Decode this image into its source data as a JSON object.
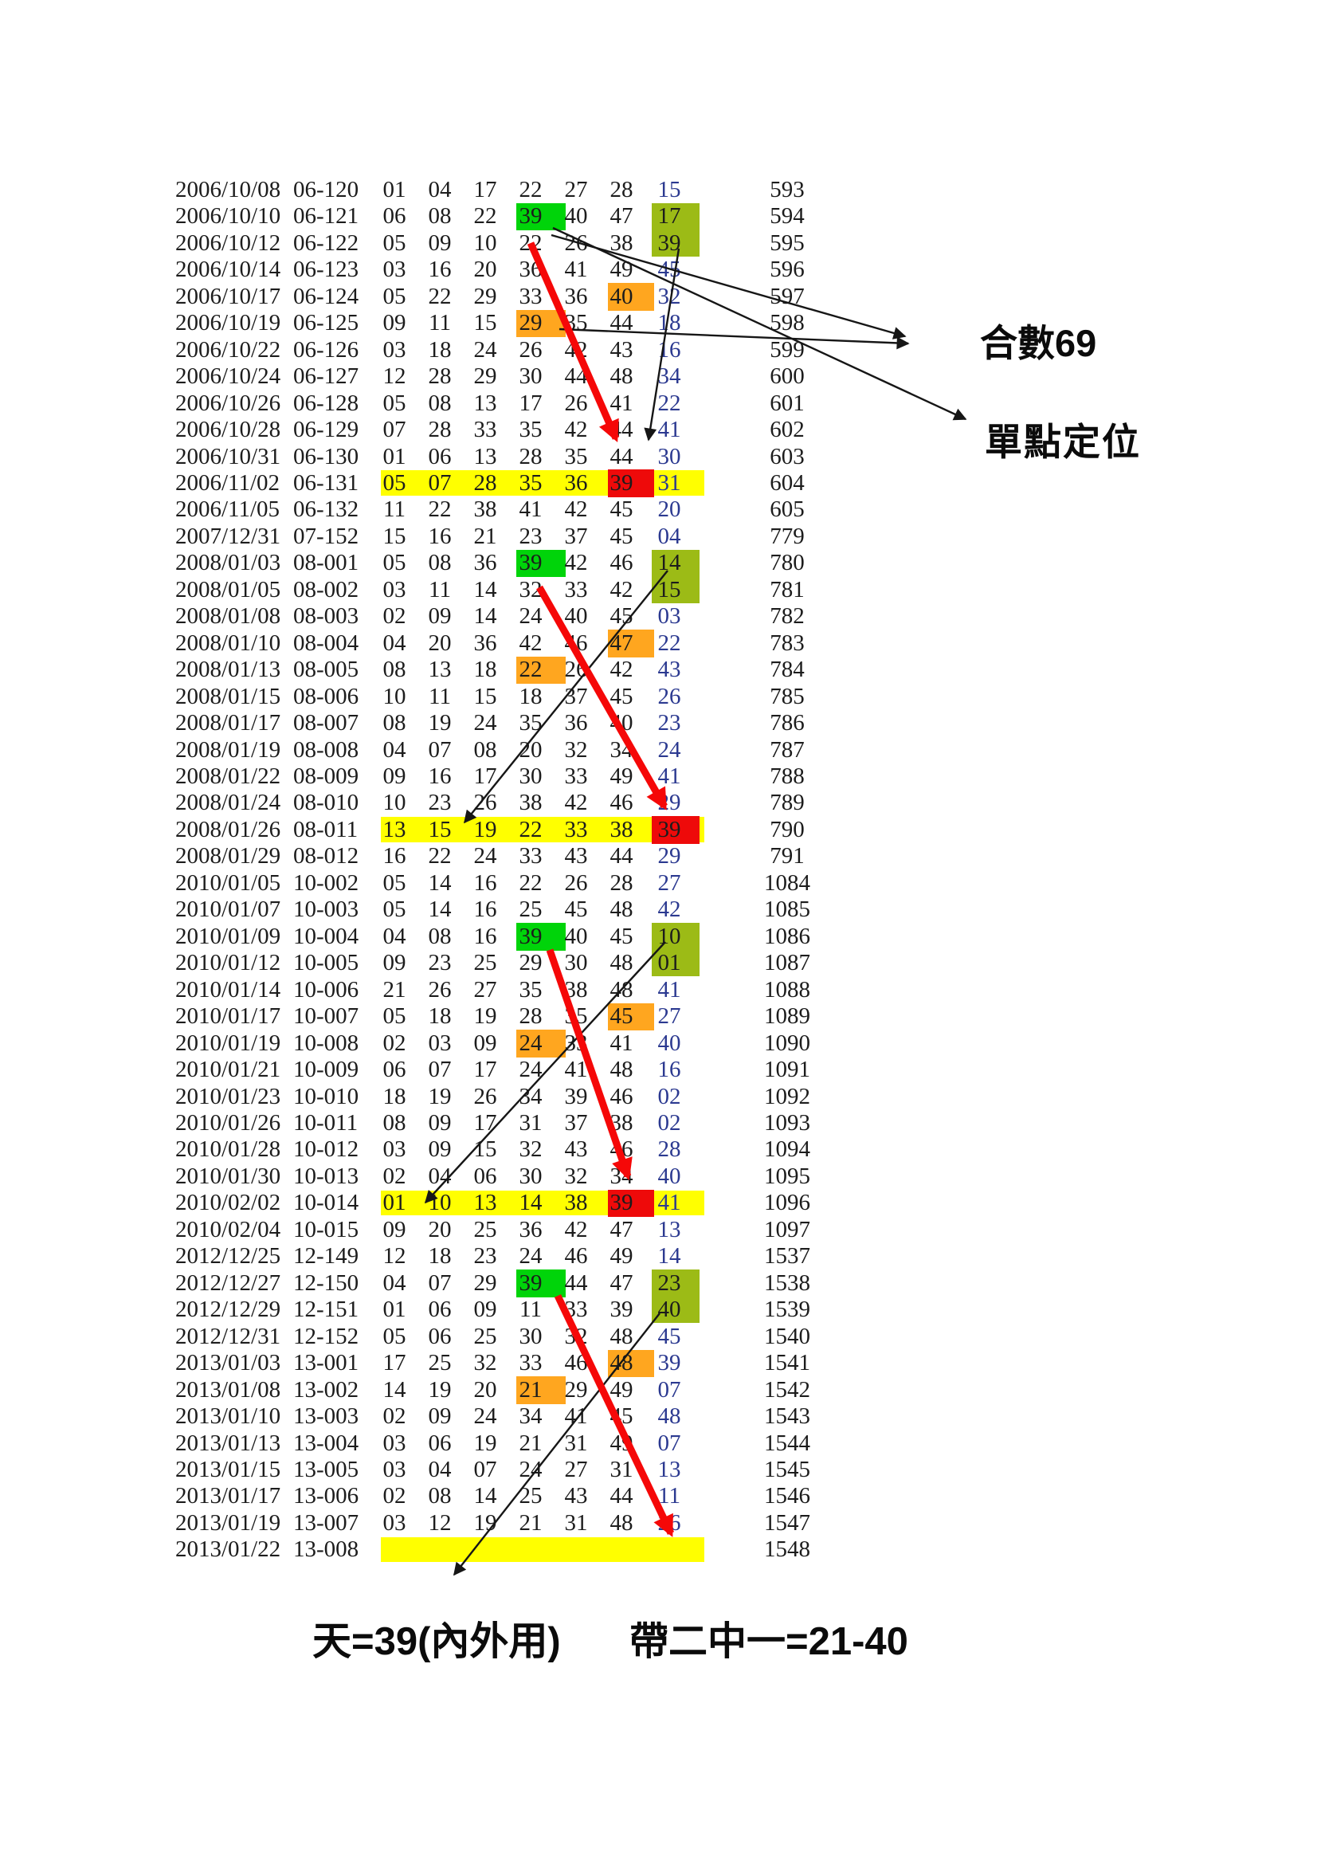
{
  "annotations": {
    "sum_label": "合數69",
    "position_label": "單點定位",
    "bottom_left": "天=39(內外用)",
    "bottom_right": "帶二中一=21-40"
  },
  "colors": {
    "green": "#00D40A",
    "olive": "#9CBB16",
    "orange": "#FFA61F",
    "red_cell": "#EE0A0A",
    "yellow": "#FFFF00",
    "navy": "#2B3990",
    "arrow_red": "#F50808",
    "line_black": "#161616",
    "text": "#1C1C1C"
  },
  "table": {
    "rows": [
      {
        "date": "2006/10/08",
        "draw": "06-120",
        "nums": [
          "01",
          "04",
          "17",
          "22",
          "27",
          "28",
          "15"
        ],
        "seq": "593"
      },
      {
        "date": "2006/10/10",
        "draw": "06-121",
        "nums": [
          "06",
          "08",
          "22",
          "39",
          "40",
          "47",
          "17"
        ],
        "seq": "594",
        "hl": {
          "3": "green",
          "6": "olive2"
        }
      },
      {
        "date": "2006/10/12",
        "draw": "06-122",
        "nums": [
          "05",
          "09",
          "10",
          "22",
          "26",
          "38",
          "39"
        ],
        "seq": "595",
        "hl": {
          "6": "in_olive"
        }
      },
      {
        "date": "2006/10/14",
        "draw": "06-123",
        "nums": [
          "03",
          "16",
          "20",
          "36",
          "41",
          "49",
          "45"
        ],
        "seq": "596"
      },
      {
        "date": "2006/10/17",
        "draw": "06-124",
        "nums": [
          "05",
          "22",
          "29",
          "33",
          "36",
          "40",
          "32"
        ],
        "seq": "597",
        "hl": {
          "5": "orange"
        }
      },
      {
        "date": "2006/10/19",
        "draw": "06-125",
        "nums": [
          "09",
          "11",
          "15",
          "29",
          "35",
          "44",
          "18"
        ],
        "seq": "598",
        "hl": {
          "3": "orange"
        }
      },
      {
        "date": "2006/10/22",
        "draw": "06-126",
        "nums": [
          "03",
          "18",
          "24",
          "26",
          "42",
          "43",
          "16"
        ],
        "seq": "599"
      },
      {
        "date": "2006/10/24",
        "draw": "06-127",
        "nums": [
          "12",
          "28",
          "29",
          "30",
          "44",
          "48",
          "34"
        ],
        "seq": "600"
      },
      {
        "date": "2006/10/26",
        "draw": "06-128",
        "nums": [
          "05",
          "08",
          "13",
          "17",
          "26",
          "41",
          "22"
        ],
        "seq": "601"
      },
      {
        "date": "2006/10/28",
        "draw": "06-129",
        "nums": [
          "07",
          "28",
          "33",
          "35",
          "42",
          "44",
          "41"
        ],
        "seq": "602"
      },
      {
        "date": "2006/10/31",
        "draw": "06-130",
        "nums": [
          "01",
          "06",
          "13",
          "28",
          "35",
          "44",
          "30"
        ],
        "seq": "603"
      },
      {
        "date": "2006/11/02",
        "draw": "06-131",
        "nums": [
          "05",
          "07",
          "28",
          "35",
          "36",
          "39",
          "31"
        ],
        "seq": "604",
        "row_hl": "yellow",
        "hl": {
          "5": "red"
        }
      },
      {
        "date": "2006/11/05",
        "draw": "06-132",
        "nums": [
          "11",
          "22",
          "38",
          "41",
          "42",
          "45",
          "20"
        ],
        "seq": "605"
      },
      {
        "date": "2007/12/31",
        "draw": "07-152",
        "nums": [
          "15",
          "16",
          "21",
          "23",
          "37",
          "45",
          "04"
        ],
        "seq": "779"
      },
      {
        "date": "2008/01/03",
        "draw": "08-001",
        "nums": [
          "05",
          "08",
          "36",
          "39",
          "42",
          "46",
          "14"
        ],
        "seq": "780",
        "hl": {
          "3": "green",
          "6": "olive2"
        }
      },
      {
        "date": "2008/01/05",
        "draw": "08-002",
        "nums": [
          "03",
          "11",
          "14",
          "32",
          "33",
          "42",
          "15"
        ],
        "seq": "781",
        "hl": {
          "6": "in_olive"
        }
      },
      {
        "date": "2008/01/08",
        "draw": "08-003",
        "nums": [
          "02",
          "09",
          "14",
          "24",
          "40",
          "45",
          "03"
        ],
        "seq": "782"
      },
      {
        "date": "2008/01/10",
        "draw": "08-004",
        "nums": [
          "04",
          "20",
          "36",
          "42",
          "46",
          "47",
          "22"
        ],
        "seq": "783",
        "hl": {
          "5": "orange"
        }
      },
      {
        "date": "2008/01/13",
        "draw": "08-005",
        "nums": [
          "08",
          "13",
          "18",
          "22",
          "26",
          "42",
          "43"
        ],
        "seq": "784",
        "hl": {
          "3": "orange"
        }
      },
      {
        "date": "2008/01/15",
        "draw": "08-006",
        "nums": [
          "10",
          "11",
          "15",
          "18",
          "37",
          "45",
          "26"
        ],
        "seq": "785"
      },
      {
        "date": "2008/01/17",
        "draw": "08-007",
        "nums": [
          "08",
          "19",
          "24",
          "35",
          "36",
          "40",
          "23"
        ],
        "seq": "786"
      },
      {
        "date": "2008/01/19",
        "draw": "08-008",
        "nums": [
          "04",
          "07",
          "08",
          "20",
          "32",
          "34",
          "24"
        ],
        "seq": "787"
      },
      {
        "date": "2008/01/22",
        "draw": "08-009",
        "nums": [
          "09",
          "16",
          "17",
          "30",
          "33",
          "49",
          "41"
        ],
        "seq": "788"
      },
      {
        "date": "2008/01/24",
        "draw": "08-010",
        "nums": [
          "10",
          "23",
          "26",
          "38",
          "42",
          "46",
          "29"
        ],
        "seq": "789"
      },
      {
        "date": "2008/01/26",
        "draw": "08-011",
        "nums": [
          "13",
          "15",
          "19",
          "22",
          "33",
          "38",
          "39"
        ],
        "seq": "790",
        "row_hl": "yellow",
        "hl": {
          "6": "red"
        }
      },
      {
        "date": "2008/01/29",
        "draw": "08-012",
        "nums": [
          "16",
          "22",
          "24",
          "33",
          "43",
          "44",
          "29"
        ],
        "seq": "791"
      },
      {
        "date": "2010/01/05",
        "draw": "10-002",
        "nums": [
          "05",
          "14",
          "16",
          "22",
          "26",
          "28",
          "27"
        ],
        "seq": "1084"
      },
      {
        "date": "2010/01/07",
        "draw": "10-003",
        "nums": [
          "05",
          "14",
          "16",
          "25",
          "45",
          "48",
          "42"
        ],
        "seq": "1085"
      },
      {
        "date": "2010/01/09",
        "draw": "10-004",
        "nums": [
          "04",
          "08",
          "16",
          "39",
          "40",
          "45",
          "10"
        ],
        "seq": "1086",
        "hl": {
          "3": "green",
          "6": "olive2"
        }
      },
      {
        "date": "2010/01/12",
        "draw": "10-005",
        "nums": [
          "09",
          "23",
          "25",
          "29",
          "30",
          "48",
          "01"
        ],
        "seq": "1087",
        "hl": {
          "6": "in_olive"
        }
      },
      {
        "date": "2010/01/14",
        "draw": "10-006",
        "nums": [
          "21",
          "26",
          "27",
          "35",
          "38",
          "48",
          "41"
        ],
        "seq": "1088"
      },
      {
        "date": "2010/01/17",
        "draw": "10-007",
        "nums": [
          "05",
          "18",
          "19",
          "28",
          "35",
          "45",
          "27"
        ],
        "seq": "1089",
        "hl": {
          "5": "orange"
        }
      },
      {
        "date": "2010/01/19",
        "draw": "10-008",
        "nums": [
          "02",
          "03",
          "09",
          "24",
          "33",
          "41",
          "40"
        ],
        "seq": "1090",
        "hl": {
          "3": "orange"
        }
      },
      {
        "date": "2010/01/21",
        "draw": "10-009",
        "nums": [
          "06",
          "07",
          "17",
          "24",
          "41",
          "48",
          "16"
        ],
        "seq": "1091"
      },
      {
        "date": "2010/01/23",
        "draw": "10-010",
        "nums": [
          "18",
          "19",
          "26",
          "34",
          "39",
          "46",
          "02"
        ],
        "seq": "1092"
      },
      {
        "date": "2010/01/26",
        "draw": "10-011",
        "nums": [
          "08",
          "09",
          "17",
          "31",
          "37",
          "38",
          "02"
        ],
        "seq": "1093"
      },
      {
        "date": "2010/01/28",
        "draw": "10-012",
        "nums": [
          "03",
          "09",
          "15",
          "32",
          "43",
          "46",
          "28"
        ],
        "seq": "1094"
      },
      {
        "date": "2010/01/30",
        "draw": "10-013",
        "nums": [
          "02",
          "04",
          "06",
          "30",
          "32",
          "34",
          "40"
        ],
        "seq": "1095"
      },
      {
        "date": "2010/02/02",
        "draw": "10-014",
        "nums": [
          "01",
          "10",
          "13",
          "14",
          "38",
          "39",
          "41"
        ],
        "seq": "1096",
        "row_hl": "yellow",
        "hl": {
          "5": "red"
        }
      },
      {
        "date": "2010/02/04",
        "draw": "10-015",
        "nums": [
          "09",
          "20",
          "25",
          "36",
          "42",
          "47",
          "13"
        ],
        "seq": "1097"
      },
      {
        "date": "2012/12/25",
        "draw": "12-149",
        "nums": [
          "12",
          "18",
          "23",
          "24",
          "46",
          "49",
          "14"
        ],
        "seq": "1537"
      },
      {
        "date": "2012/12/27",
        "draw": "12-150",
        "nums": [
          "04",
          "07",
          "29",
          "39",
          "44",
          "47",
          "23"
        ],
        "seq": "1538",
        "hl": {
          "3": "green",
          "6": "olive2"
        }
      },
      {
        "date": "2012/12/29",
        "draw": "12-151",
        "nums": [
          "01",
          "06",
          "09",
          "11",
          "33",
          "39",
          "40"
        ],
        "seq": "1539",
        "hl": {
          "6": "in_olive"
        }
      },
      {
        "date": "2012/12/31",
        "draw": "12-152",
        "nums": [
          "05",
          "06",
          "25",
          "30",
          "32",
          "48",
          "45"
        ],
        "seq": "1540"
      },
      {
        "date": "2013/01/03",
        "draw": "13-001",
        "nums": [
          "17",
          "25",
          "32",
          "33",
          "46",
          "48",
          "39"
        ],
        "seq": "1541",
        "hl": {
          "5": "orange"
        }
      },
      {
        "date": "2013/01/08",
        "draw": "13-002",
        "nums": [
          "14",
          "19",
          "20",
          "21",
          "29",
          "49",
          "07"
        ],
        "seq": "1542",
        "hl": {
          "3": "orange"
        }
      },
      {
        "date": "2013/01/10",
        "draw": "13-003",
        "nums": [
          "02",
          "09",
          "24",
          "34",
          "41",
          "45",
          "48"
        ],
        "seq": "1543"
      },
      {
        "date": "2013/01/13",
        "draw": "13-004",
        "nums": [
          "03",
          "06",
          "19",
          "21",
          "31",
          "49",
          "07"
        ],
        "seq": "1544"
      },
      {
        "date": "2013/01/15",
        "draw": "13-005",
        "nums": [
          "03",
          "04",
          "07",
          "24",
          "27",
          "31",
          "13"
        ],
        "seq": "1545"
      },
      {
        "date": "2013/01/17",
        "draw": "13-006",
        "nums": [
          "02",
          "08",
          "14",
          "25",
          "43",
          "44",
          "11"
        ],
        "seq": "1546"
      },
      {
        "date": "2013/01/19",
        "draw": "13-007",
        "nums": [
          "03",
          "12",
          "19",
          "21",
          "31",
          "48",
          "26"
        ],
        "seq": "1547"
      },
      {
        "date": "2013/01/22",
        "draw": "13-008",
        "nums": [],
        "seq": "1548",
        "row_hl": "yellow"
      }
    ]
  }
}
